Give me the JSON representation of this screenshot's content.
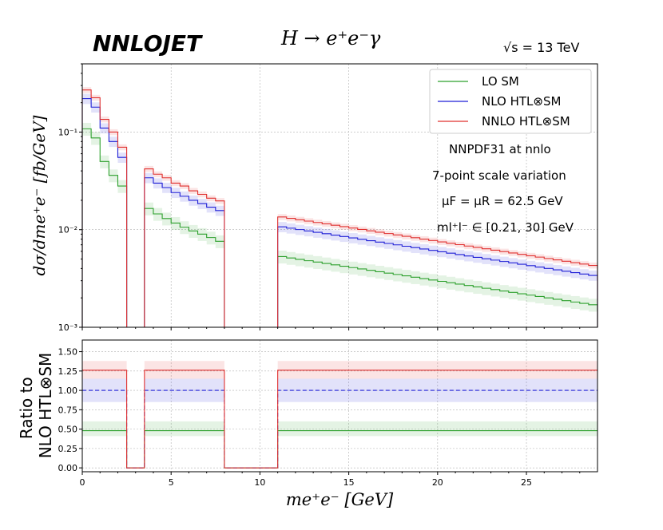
{
  "brand": "NNLOJET",
  "process": "H → e⁺e⁻γ",
  "energy": "√s = 13 TeV",
  "info_lines": [
    "NNPDF31 at nnlo",
    "7-point scale variation",
    "μF = μR = 62.5 GeV",
    "ml⁺l⁻ ∈ [0.21, 30] GeV"
  ],
  "colors": {
    "lo": "#2ca02c",
    "nlo": "#1f1fd6",
    "nnlo": "#e0302f",
    "grid": "#b0b0b0"
  },
  "chart_data": {
    "type": "step",
    "title": "H → e⁺e⁻γ",
    "xlabel": "me⁺e⁻ [GeV]",
    "xlim": [
      0,
      29
    ],
    "x_ticks": [
      "0",
      "5",
      "10",
      "15",
      "20",
      "25"
    ],
    "top_panel": {
      "ylabel": "dσ/dme⁺e⁻ [fb/GeV]",
      "yscale": "log",
      "ylim": [
        0.001,
        0.5
      ],
      "y_ticks": [
        "10⁻³",
        "10⁻²",
        "10⁻¹"
      ],
      "legend": [
        "LO SM",
        "NLO HTL⊗SM",
        "NNLO HTL⊗SM"
      ],
      "segments": [
        {
          "x": [
            0,
            0.5,
            1,
            1.5,
            2,
            2.5
          ],
          "series": [
            {
              "name": "LO SM",
              "values": [
                0.108,
                0.087,
                0.05,
                0.036,
                0.028
              ],
              "band": 0.15
            },
            {
              "name": "NLO HTL⊗SM",
              "values": [
                0.22,
                0.18,
                0.11,
                0.08,
                0.055
              ],
              "band": 0.12
            },
            {
              "name": "NNLO HTL⊗SM",
              "values": [
                0.27,
                0.225,
                0.135,
                0.1,
                0.07
              ],
              "band": 0.07
            }
          ]
        },
        {
          "x": [
            3.5,
            4,
            4.5,
            5,
            5.5,
            6,
            6.5,
            7,
            7.5,
            8
          ],
          "series": [
            {
              "name": "LO SM",
              "values": [
                0.0165,
                0.0145,
                0.013,
                0.0117,
                0.0106,
                0.0097,
                0.009,
                0.0083,
                0.0076
              ],
              "band": 0.15
            },
            {
              "name": "NLO HTL⊗SM",
              "values": [
                0.034,
                0.03,
                0.027,
                0.024,
                0.022,
                0.02,
                0.0185,
                0.017,
                0.0157
              ],
              "band": 0.12
            },
            {
              "name": "NNLO HTL⊗SM",
              "values": [
                0.042,
                0.037,
                0.034,
                0.03,
                0.028,
                0.025,
                0.023,
                0.021,
                0.0197
              ],
              "band": 0.07
            }
          ]
        },
        {
          "x_start": 11,
          "x_end": 29,
          "n_bins": 36,
          "series": [
            {
              "name": "LO SM",
              "start": 0.0053,
              "end": 0.0017,
              "band": 0.15
            },
            {
              "name": "NLO HTL⊗SM",
              "start": 0.0107,
              "end": 0.0034,
              "band": 0.12
            },
            {
              "name": "NNLO HTL⊗SM",
              "start": 0.0135,
              "end": 0.0043,
              "band": 0.07
            }
          ]
        }
      ],
      "gaps": [
        [
          2.5,
          3.5
        ],
        [
          8,
          11
        ]
      ]
    },
    "ratio_panel": {
      "ylabel": "Ratio to NLO HTL⊗SM",
      "ylim": [
        -0.05,
        1.65
      ],
      "y_ticks": [
        "0.00",
        "0.25",
        "0.50",
        "0.75",
        "1.00",
        "1.25",
        "1.50"
      ],
      "series": [
        {
          "name": "LO SM",
          "value": 0.48,
          "band_low": 0.41,
          "band_high": 0.6
        },
        {
          "name": "NLO HTL⊗SM",
          "value": 1.0,
          "band_low": 0.85,
          "band_high": 1.15
        },
        {
          "name": "NNLO HTL⊗SM",
          "value": 1.26,
          "band_low": 1.15,
          "band_high": 1.38
        }
      ],
      "zero_regions": [
        [
          2.5,
          3.5
        ],
        [
          8,
          11
        ]
      ]
    }
  }
}
